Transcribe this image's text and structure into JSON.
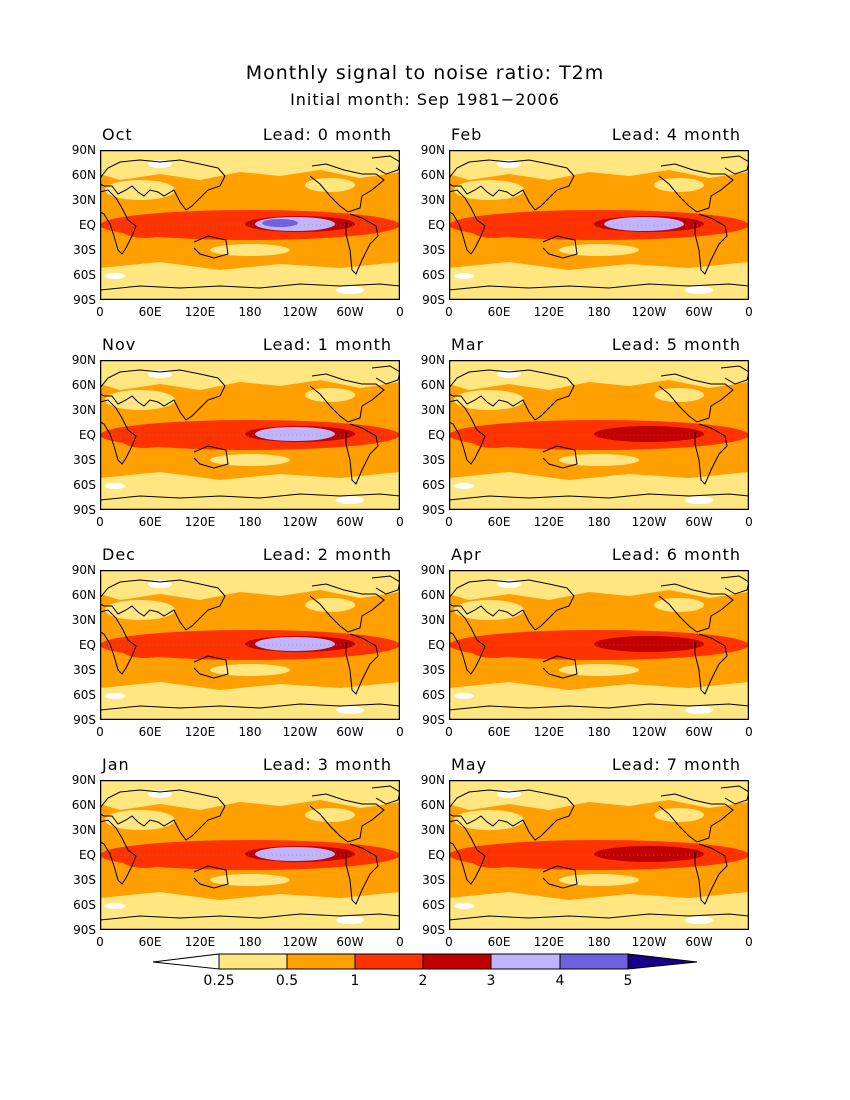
{
  "title": "Monthly signal to noise ratio: T2m",
  "subtitle": "Initial month: Sep 1981−2006",
  "lat_labels": [
    "90N",
    "60N",
    "30N",
    "EQ",
    "30S",
    "60S",
    "90S"
  ],
  "lon_labels": [
    "0",
    "60E",
    "120E",
    "180",
    "120W",
    "60W",
    "0"
  ],
  "panels": [
    {
      "month": "Oct",
      "lead": "Lead: 0 month",
      "strength": 5
    },
    {
      "month": "Feb",
      "lead": "Lead: 4 month",
      "strength": 4
    },
    {
      "month": "Nov",
      "lead": "Lead: 1 month",
      "strength": 4
    },
    {
      "month": "Mar",
      "lead": "Lead: 5 month",
      "strength": 3
    },
    {
      "month": "Dec",
      "lead": "Lead: 2 month",
      "strength": 4
    },
    {
      "month": "Apr",
      "lead": "Lead: 6 month",
      "strength": 3
    },
    {
      "month": "Jan",
      "lead": "Lead: 3 month",
      "strength": 4
    },
    {
      "month": "May",
      "lead": "Lead: 7 month",
      "strength": 3
    }
  ],
  "colorbar": {
    "labels": [
      "0.25",
      "0.5",
      "1",
      "2",
      "3",
      "4",
      "5"
    ],
    "colors": [
      "#ffffff",
      "#ffe680",
      "#ffa000",
      "#ff3300",
      "#c00000",
      "#c0b4ff",
      "#7060e0",
      "#1a008a"
    ]
  }
}
